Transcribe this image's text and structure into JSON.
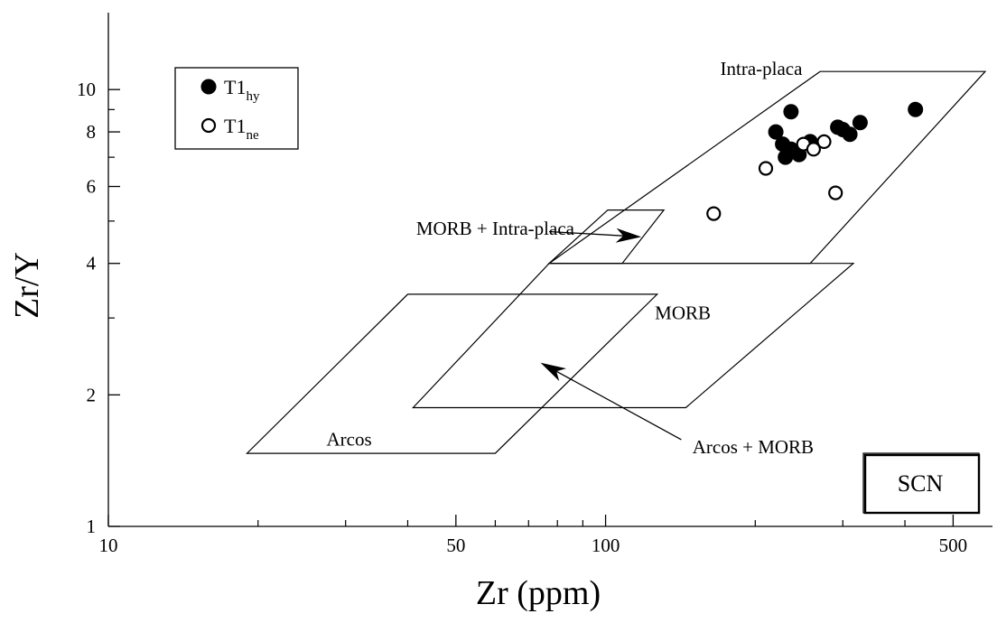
{
  "chart_data": {
    "type": "scatter",
    "title": "",
    "xlabel": "Zr (ppm)",
    "ylabel": "Zr/Y",
    "xscale": "log",
    "yscale": "log",
    "xlim": [
      10,
      600
    ],
    "ylim": [
      1,
      15
    ],
    "x_ticks": [
      {
        "value": 10,
        "label": "10"
      },
      {
        "value": 50,
        "label": "50"
      },
      {
        "value": 100,
        "label": "100"
      },
      {
        "value": 500,
        "label": "500"
      }
    ],
    "x_minor_ticks": [
      20,
      30,
      40,
      60,
      70,
      80,
      90,
      200,
      300,
      400
    ],
    "y_ticks": [
      {
        "value": 1,
        "label": "1"
      },
      {
        "value": 2,
        "label": "2"
      },
      {
        "value": 4,
        "label": "4"
      },
      {
        "value": 6,
        "label": "6"
      },
      {
        "value": 8,
        "label": "8"
      },
      {
        "value": 10,
        "label": "10"
      }
    ],
    "y_minor_ticks": [
      3,
      5,
      7,
      9
    ],
    "grid": false,
    "legend_position": "top-left",
    "series": [
      {
        "name": "T1",
        "name_sub": "hy",
        "marker": "filled-circle",
        "points": [
          {
            "x": 220,
            "y": 8.0
          },
          {
            "x": 236,
            "y": 8.9
          },
          {
            "x": 227,
            "y": 7.5
          },
          {
            "x": 230,
            "y": 7.0
          },
          {
            "x": 236,
            "y": 7.3
          },
          {
            "x": 245,
            "y": 7.1
          },
          {
            "x": 258,
            "y": 7.6
          },
          {
            "x": 293,
            "y": 8.2
          },
          {
            "x": 300,
            "y": 8.1
          },
          {
            "x": 310,
            "y": 7.9
          },
          {
            "x": 325,
            "y": 8.4
          },
          {
            "x": 420,
            "y": 9.0
          }
        ]
      },
      {
        "name": "T1",
        "name_sub": "ne",
        "marker": "open-circle",
        "points": [
          {
            "x": 165,
            "y": 5.2
          },
          {
            "x": 210,
            "y": 6.6
          },
          {
            "x": 250,
            "y": 7.5
          },
          {
            "x": 262,
            "y": 7.3
          },
          {
            "x": 275,
            "y": 7.6
          },
          {
            "x": 290,
            "y": 5.8
          }
        ]
      }
    ],
    "fields": [
      {
        "name": "intra-placa",
        "polygon": [
          [
            77,
            4
          ],
          [
            258,
            4
          ],
          [
            580,
            11
          ],
          [
            270,
            11
          ]
        ]
      },
      {
        "name": "morb-intra-placa",
        "polygon": [
          [
            77,
            4
          ],
          [
            108,
            4
          ],
          [
            131,
            5.3
          ],
          [
            101,
            5.3
          ]
        ]
      },
      {
        "name": "morb",
        "polygon": [
          [
            41,
            1.87
          ],
          [
            145,
            1.87
          ],
          [
            315,
            4
          ],
          [
            77,
            4
          ]
        ]
      },
      {
        "name": "arcos",
        "polygon": [
          [
            19,
            1.47
          ],
          [
            60,
            1.47
          ],
          [
            127,
            3.4
          ],
          [
            40,
            3.4
          ]
        ]
      }
    ],
    "annotations": [
      {
        "text": "Intra-placa",
        "x": 170,
        "y": 10.8,
        "anchor": "start"
      },
      {
        "text": "MORB + Intra-placa",
        "x": 60,
        "y": 4.65,
        "anchor": "middle"
      },
      {
        "text": "MORB",
        "x": 143,
        "y": 2.98,
        "anchor": "middle"
      },
      {
        "text": "Arcos",
        "x": 30.5,
        "y": 1.53,
        "anchor": "middle"
      },
      {
        "text": "Arcos + MORB",
        "x": 198,
        "y": 1.47,
        "anchor": "middle"
      }
    ],
    "arrows": [
      {
        "from": [
          77,
          4.73
        ],
        "to": [
          118,
          4.6
        ]
      },
      {
        "from": [
          142,
          1.58
        ],
        "to": [
          74,
          2.37
        ]
      }
    ],
    "stamp": "SCN"
  }
}
